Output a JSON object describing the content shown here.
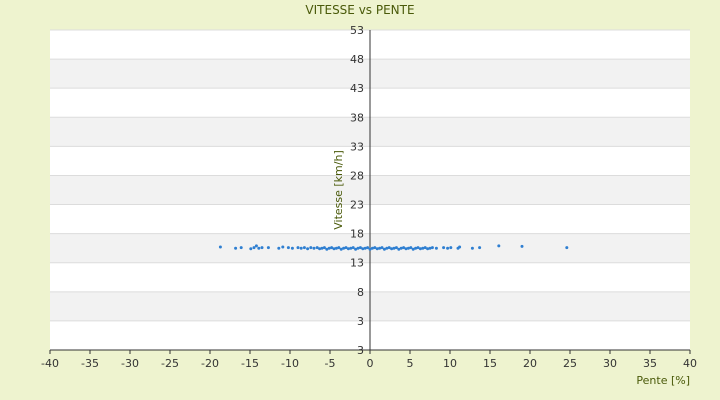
{
  "chart_data": {
    "type": "scatter",
    "title": "VITESSE vs PENTE",
    "xlabel": "Pente [%]",
    "ylabel": "Vitesse [km/h]",
    "xlim": [
      -40,
      40
    ],
    "x_ticks": [
      -40,
      -35,
      -30,
      -25,
      -20,
      -15,
      -10,
      -5,
      0,
      5,
      10,
      15,
      20,
      25,
      30,
      35,
      40
    ],
    "y_tick_labels": [
      "53",
      "48",
      "43",
      "38",
      "33",
      "28",
      "23",
      "18",
      "13",
      "8",
      "3",
      "3"
    ],
    "y_bands": 11,
    "grid": "alternating-bands",
    "series": [
      {
        "color": "#2f7fd1",
        "points": [
          [
            -18.7,
            15.7
          ],
          [
            -16.8,
            15.5
          ],
          [
            -16.1,
            15.6
          ],
          [
            -14.9,
            15.4
          ],
          [
            -14.5,
            15.6
          ],
          [
            -14.2,
            15.9
          ],
          [
            -13.9,
            15.5
          ],
          [
            -13.5,
            15.6
          ],
          [
            -12.7,
            15.6
          ],
          [
            -11.4,
            15.5
          ],
          [
            -10.9,
            15.7
          ],
          [
            -10.2,
            15.6
          ],
          [
            -9.7,
            15.5
          ],
          [
            -9.0,
            15.6
          ],
          [
            -8.6,
            15.5
          ],
          [
            -8.2,
            15.6
          ],
          [
            -7.8,
            15.4
          ],
          [
            -7.4,
            15.6
          ],
          [
            -7.0,
            15.5
          ],
          [
            -6.6,
            15.6
          ],
          [
            -6.3,
            15.4
          ],
          [
            -6.0,
            15.5
          ],
          [
            -5.7,
            15.6
          ],
          [
            -5.4,
            15.3
          ],
          [
            -5.1,
            15.5
          ],
          [
            -4.8,
            15.6
          ],
          [
            -4.5,
            15.4
          ],
          [
            -4.2,
            15.5
          ],
          [
            -3.9,
            15.6
          ],
          [
            -3.6,
            15.3
          ],
          [
            -3.3,
            15.5
          ],
          [
            -3.0,
            15.6
          ],
          [
            -2.7,
            15.4
          ],
          [
            -2.4,
            15.5
          ],
          [
            -2.1,
            15.6
          ],
          [
            -1.8,
            15.3
          ],
          [
            -1.5,
            15.5
          ],
          [
            -1.2,
            15.6
          ],
          [
            -0.9,
            15.4
          ],
          [
            -0.6,
            15.5
          ],
          [
            -0.3,
            15.6
          ],
          [
            0.0,
            15.3
          ],
          [
            0.3,
            15.5
          ],
          [
            0.6,
            15.6
          ],
          [
            0.9,
            15.4
          ],
          [
            1.2,
            15.5
          ],
          [
            1.5,
            15.6
          ],
          [
            1.8,
            15.3
          ],
          [
            2.1,
            15.5
          ],
          [
            2.4,
            15.6
          ],
          [
            2.7,
            15.4
          ],
          [
            3.0,
            15.5
          ],
          [
            3.3,
            15.6
          ],
          [
            3.6,
            15.3
          ],
          [
            3.9,
            15.5
          ],
          [
            4.2,
            15.6
          ],
          [
            4.5,
            15.4
          ],
          [
            4.8,
            15.5
          ],
          [
            5.1,
            15.6
          ],
          [
            5.4,
            15.3
          ],
          [
            5.7,
            15.5
          ],
          [
            6.0,
            15.6
          ],
          [
            6.3,
            15.4
          ],
          [
            6.6,
            15.5
          ],
          [
            6.9,
            15.6
          ],
          [
            7.2,
            15.4
          ],
          [
            7.5,
            15.5
          ],
          [
            7.8,
            15.6
          ],
          [
            8.3,
            15.5
          ],
          [
            9.2,
            15.6
          ],
          [
            9.7,
            15.5
          ],
          [
            10.1,
            15.6
          ],
          [
            11.0,
            15.5
          ],
          [
            11.2,
            15.7
          ],
          [
            12.8,
            15.5
          ],
          [
            13.7,
            15.6
          ],
          [
            16.1,
            15.9
          ],
          [
            19.0,
            15.8
          ],
          [
            24.6,
            15.6
          ]
        ]
      }
    ]
  }
}
